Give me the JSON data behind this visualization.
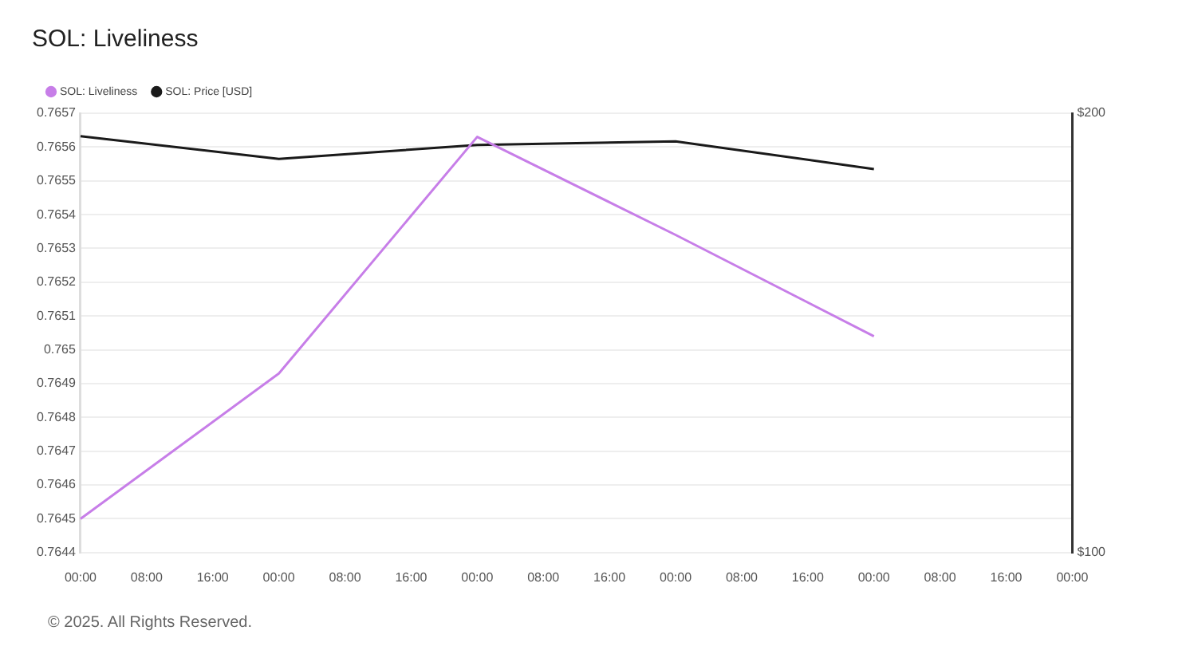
{
  "chart_data": {
    "type": "line",
    "title": "SOL: Liveliness",
    "categories": [
      "00:00",
      "08:00",
      "16:00",
      "00:00",
      "08:00",
      "16:00",
      "00:00",
      "08:00",
      "16:00",
      "00:00",
      "08:00",
      "16:00",
      "00:00",
      "08:00",
      "16:00",
      "00:00"
    ],
    "series": [
      {
        "name": "SOL: Liveliness",
        "color": "#c77ee8",
        "values": [
          0.7645,
          null,
          null,
          0.76493,
          null,
          null,
          0.76563,
          null,
          null,
          0.76534,
          null,
          null,
          0.76504,
          null,
          null,
          null
        ]
      },
      {
        "name": "SOL: Price [USD]",
        "color": "#1a1a1a",
        "axis": "y2",
        "values": [
          194.8,
          null,
          null,
          189.6,
          null,
          null,
          192.8,
          null,
          null,
          193.6,
          null,
          null,
          187.3,
          null,
          null,
          null
        ]
      }
    ],
    "ylim": [
      0.7644,
      0.7657
    ],
    "yticks": [
      0.7644,
      0.7645,
      0.7646,
      0.7647,
      0.7648,
      0.7649,
      0.765,
      0.7651,
      0.7652,
      0.7653,
      0.7654,
      0.7655,
      0.7656,
      0.7657
    ],
    "y2lim": [
      100,
      200
    ],
    "y2ticks": [
      {
        "value": 100,
        "label": "$100"
      },
      {
        "value": 200,
        "label": "$200"
      }
    ],
    "grid": "y",
    "legend": "top left",
    "marker": "none",
    "line_style": "solid",
    "annotations": [
      "© 2025. All Rights Reserved."
    ]
  }
}
